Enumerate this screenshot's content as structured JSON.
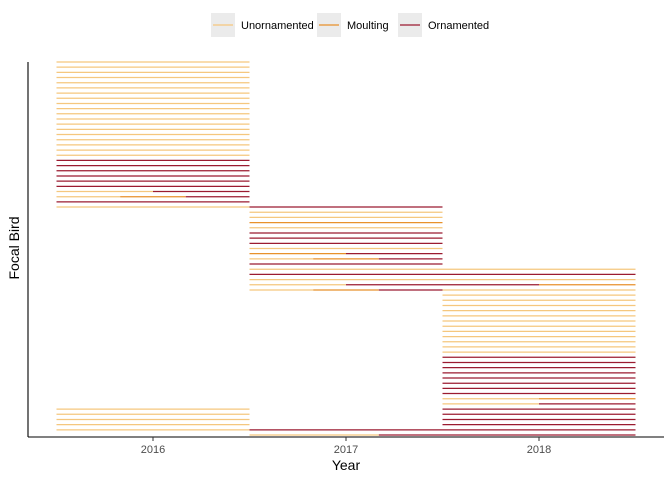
{
  "chart_data": {
    "type": "timeline",
    "xlabel": "Year",
    "ylabel": "Focal Bird",
    "x_ticks": [
      "2016",
      "2017",
      "2018"
    ],
    "legend": {
      "position": "top",
      "entries": [
        {
          "name": "Unornamented",
          "color": "#f5c77e"
        },
        {
          "name": "Moulting",
          "color": "#e8912b"
        },
        {
          "name": "Ornamented",
          "color": "#9b1b30"
        }
      ]
    },
    "grid": false,
    "ylim": [
      0,
      72
    ],
    "blocks": [
      {
        "year": "2016",
        "segments": [
          {
            "bird_from": 1,
            "bird_to": 5,
            "status": "Unornamented"
          },
          {
            "bird_from": 44,
            "bird_to": 44,
            "status": "Unornamented"
          },
          {
            "bird_from": 45,
            "bird_to": 45,
            "status": "Ornamented"
          },
          {
            "bird_from": 46,
            "bird_to": 46,
            "status": "Unornamented",
            "x_from": 2015.5,
            "x_to": 2015.83
          },
          {
            "bird_from": 46,
            "bird_to": 46,
            "status": "Moulting",
            "x_from": 2015.83,
            "x_to": 2016.17
          },
          {
            "bird_from": 46,
            "bird_to": 46,
            "status": "Ornamented",
            "x_from": 2016.17,
            "x_to": 2016.5
          },
          {
            "bird_from": 47,
            "bird_to": 47,
            "status": "Unornamented",
            "x_from": 2015.5,
            "x_to": 2016.0
          },
          {
            "bird_from": 47,
            "bird_to": 47,
            "status": "Ornamented",
            "x_from": 2016.0,
            "x_to": 2016.5
          },
          {
            "bird_from": 48,
            "bird_to": 53,
            "status": "Ornamented"
          },
          {
            "bird_from": 54,
            "bird_to": 72,
            "status": "Unornamented"
          }
        ]
      },
      {
        "year": "2017",
        "segments": [
          {
            "bird_from": 0,
            "bird_to": 0,
            "status": "Unornamented",
            "x_from": 2016.5,
            "x_to": 2017.17
          },
          {
            "bird_from": 0,
            "bird_to": 0,
            "status": "Ornamented",
            "x_from": 2017.17,
            "x_to": 2017.5
          },
          {
            "bird_from": 1,
            "bird_to": 1,
            "status": "Ornamented"
          },
          {
            "bird_from": 28,
            "bird_to": 28,
            "status": "Unornamented",
            "x_from": 2016.5,
            "x_to": 2016.83
          },
          {
            "bird_from": 28,
            "bird_to": 28,
            "status": "Moulting",
            "x_from": 2016.83,
            "x_to": 2017.17
          },
          {
            "bird_from": 28,
            "bird_to": 28,
            "status": "Ornamented",
            "x_from": 2017.17,
            "x_to": 2017.5
          },
          {
            "bird_from": 29,
            "bird_to": 29,
            "status": "Unornamented",
            "x_from": 2016.5,
            "x_to": 2017.0
          },
          {
            "bird_from": 29,
            "bird_to": 29,
            "status": "Ornamented",
            "x_from": 2017.0,
            "x_to": 2017.5
          },
          {
            "bird_from": 30,
            "bird_to": 30,
            "status": "Unornamented"
          },
          {
            "bird_from": 31,
            "bird_to": 31,
            "status": "Ornamented"
          },
          {
            "bird_from": 32,
            "bird_to": 32,
            "status": "Unornamented"
          },
          {
            "bird_from": 33,
            "bird_to": 33,
            "status": "Ornamented"
          },
          {
            "bird_from": 34,
            "bird_to": 34,
            "status": "Unornamented",
            "x_from": 2016.5,
            "x_to": 2016.83
          },
          {
            "bird_from": 34,
            "bird_to": 34,
            "status": "Moulting",
            "x_from": 2016.83,
            "x_to": 2017.17
          },
          {
            "bird_from": 34,
            "bird_to": 34,
            "status": "Ornamented",
            "x_from": 2017.17,
            "x_to": 2017.5
          },
          {
            "bird_from": 35,
            "bird_to": 35,
            "status": "Moulting",
            "x_from": 2016.5,
            "x_to": 2017.0
          },
          {
            "bird_from": 35,
            "bird_to": 35,
            "status": "Ornamented",
            "x_from": 2017.0,
            "x_to": 2017.5
          },
          {
            "bird_from": 36,
            "bird_to": 36,
            "status": "Unornamented"
          },
          {
            "bird_from": 37,
            "bird_to": 39,
            "status": "Ornamented"
          },
          {
            "bird_from": 40,
            "bird_to": 40,
            "status": "Unornamented"
          },
          {
            "bird_from": 41,
            "bird_to": 41,
            "status": "Moulting"
          },
          {
            "bird_from": 42,
            "bird_to": 43,
            "status": "Unornamented"
          },
          {
            "bird_from": 44,
            "bird_to": 44,
            "status": "Ornamented"
          }
        ]
      },
      {
        "year": "2018",
        "segments": [
          {
            "bird_from": 0,
            "bird_to": 5,
            "status": "Ornamented"
          },
          {
            "bird_from": 6,
            "bird_to": 6,
            "status": "Unornamented",
            "x_from": 2017.5,
            "x_to": 2018.0
          },
          {
            "bird_from": 6,
            "bird_to": 6,
            "status": "Ornamented",
            "x_from": 2018.0,
            "x_to": 2018.5
          },
          {
            "bird_from": 7,
            "bird_to": 7,
            "status": "Unornamented",
            "x_from": 2017.5,
            "x_to": 2018.0
          },
          {
            "bird_from": 7,
            "bird_to": 7,
            "status": "Moulting",
            "x_from": 2018.0,
            "x_to": 2018.5
          },
          {
            "bird_from": 8,
            "bird_to": 15,
            "status": "Ornamented"
          },
          {
            "bird_from": 16,
            "bird_to": 28,
            "status": "Unornamented"
          },
          {
            "bird_from": 29,
            "bird_to": 29,
            "status": "Ornamented",
            "x_from": 2017.5,
            "x_to": 2018.0
          },
          {
            "bird_from": 29,
            "bird_to": 29,
            "status": "Moulting",
            "x_from": 2018.0,
            "x_to": 2018.5
          },
          {
            "bird_from": 30,
            "bird_to": 30,
            "status": "Unornamented"
          },
          {
            "bird_from": 31,
            "bird_to": 31,
            "status": "Ornamented"
          },
          {
            "bird_from": 32,
            "bird_to": 32,
            "status": "Unornamented"
          }
        ]
      }
    ]
  }
}
